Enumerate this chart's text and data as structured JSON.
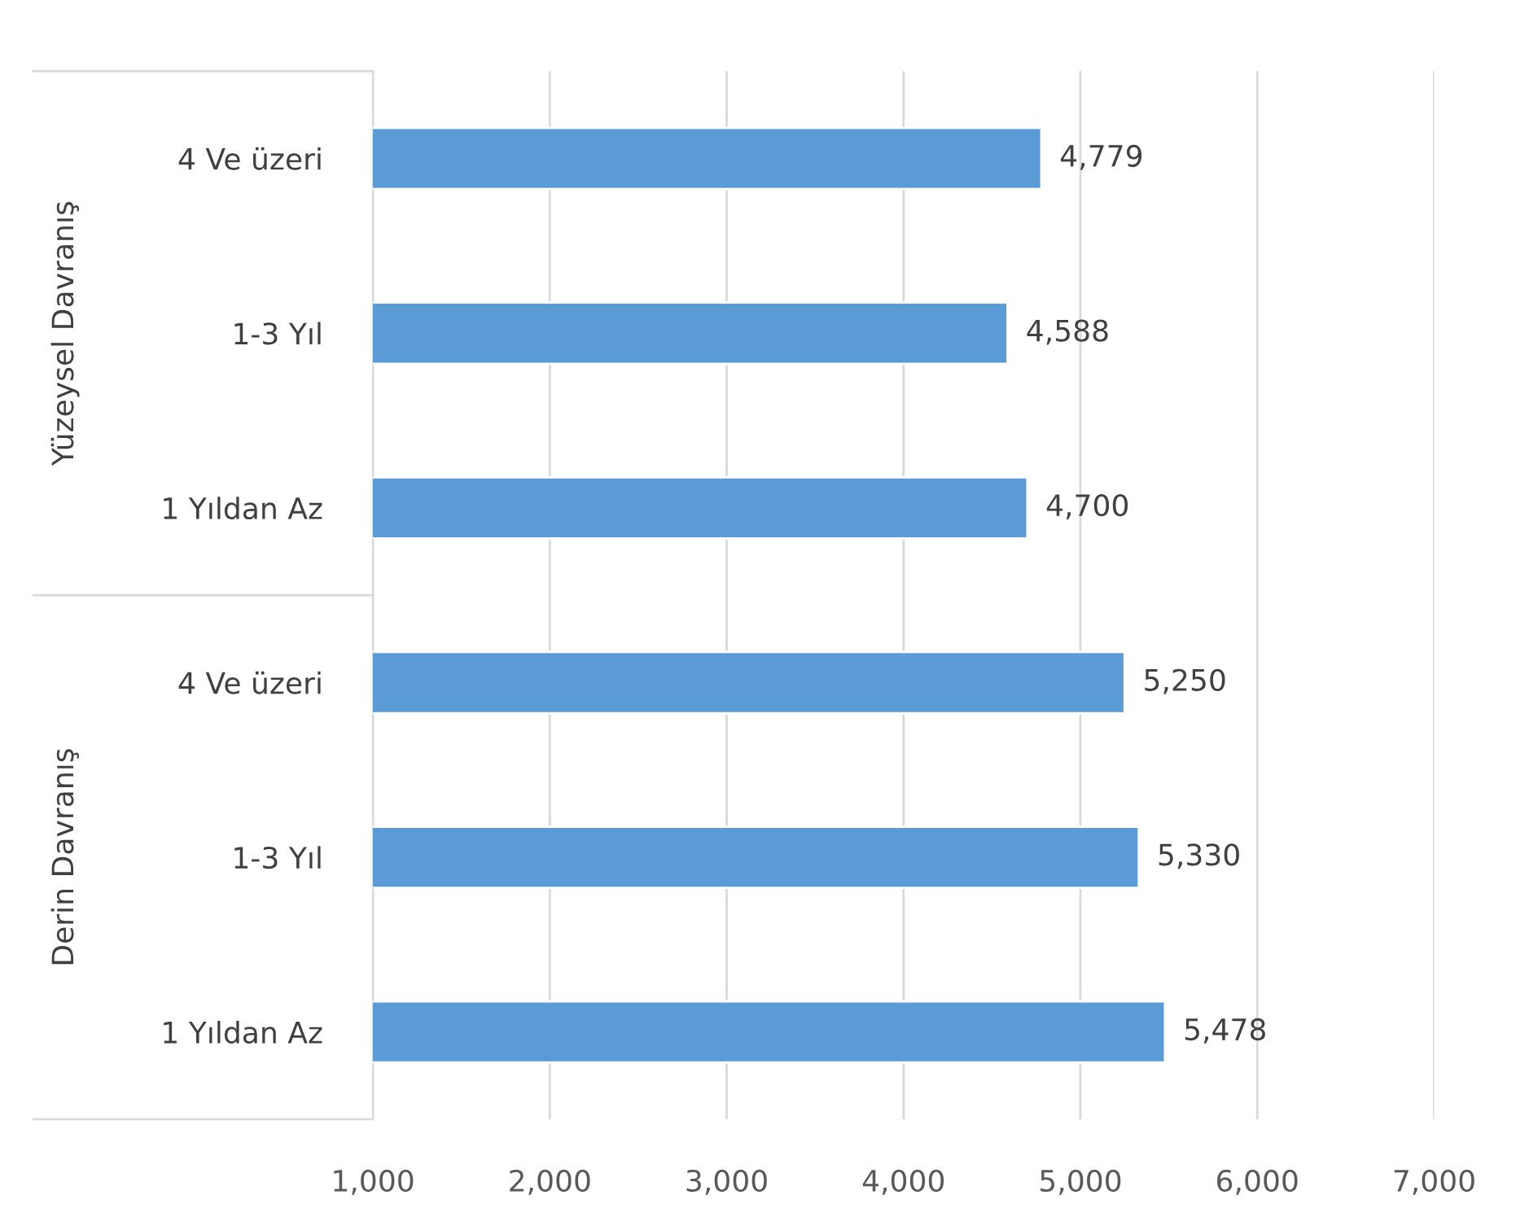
{
  "chart_data": {
    "type": "bar",
    "orientation": "horizontal",
    "categories": [
      "4 Ve üzeri",
      "1-3 Yıl",
      "1 Yıldan Az",
      "4 Ve üzeri",
      "1-3 Yıl",
      "1 Yıldan Az"
    ],
    "values": [
      4779,
      4588,
      4700,
      5250,
      5330,
      5478
    ],
    "value_labels": [
      "4,779",
      "4,588",
      "4,700",
      "5,250",
      "5,330",
      "5,478"
    ],
    "color": "#5b9bd5",
    "xlim": [
      1000,
      7000
    ],
    "xticks": [
      {
        "value": 1000,
        "label": "1,000"
      },
      {
        "value": 2000,
        "label": "2,000"
      },
      {
        "value": 3000,
        "label": "3,000"
      },
      {
        "value": 4000,
        "label": "4,000"
      },
      {
        "value": 5000,
        "label": "5,000"
      },
      {
        "value": 6000,
        "label": "6,000"
      },
      {
        "value": 7000,
        "label": "7,000"
      }
    ],
    "grid": "x",
    "annotations": [
      "Yüzeysel Davranış",
      "Derin Davranış"
    ]
  }
}
